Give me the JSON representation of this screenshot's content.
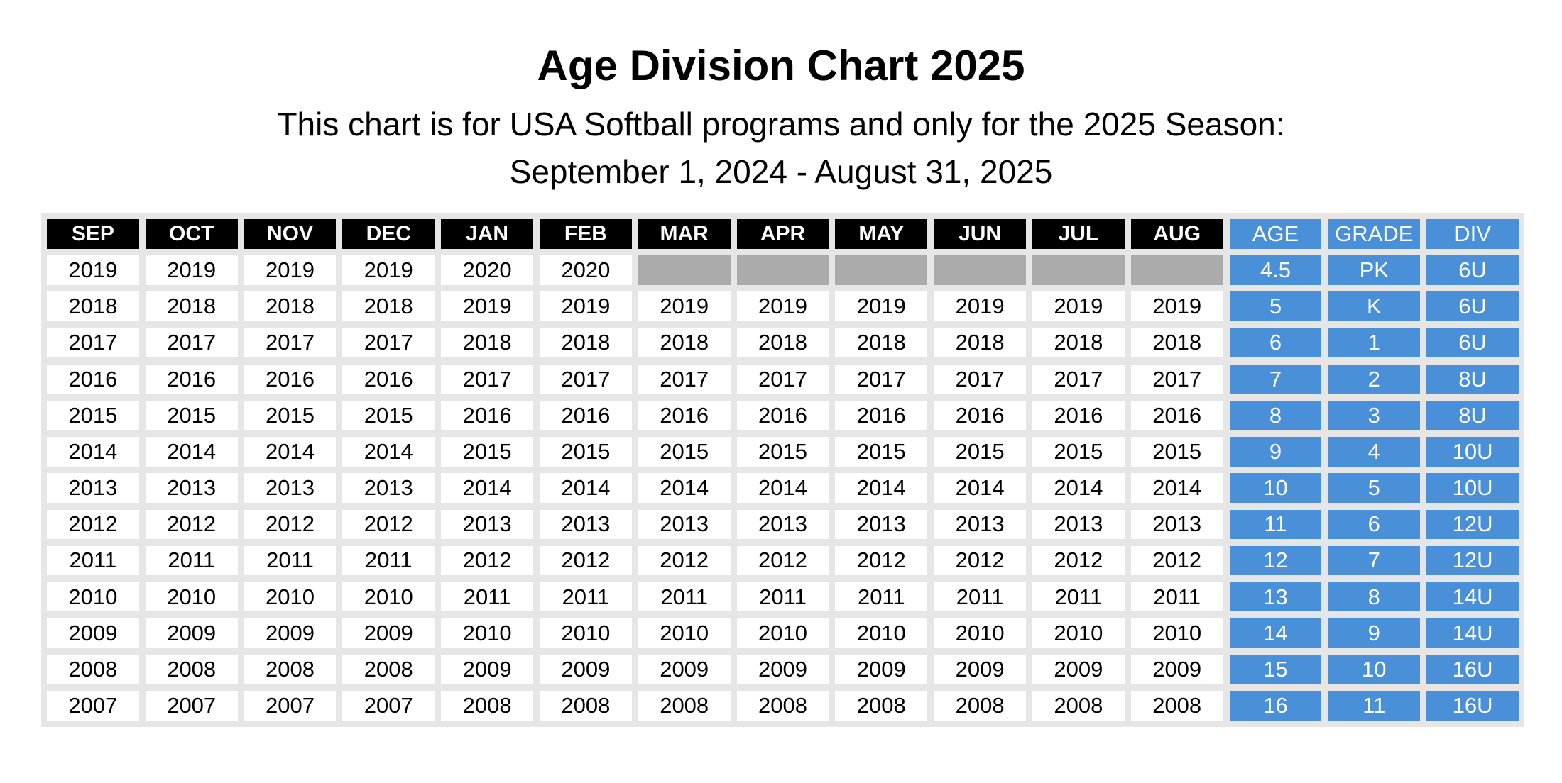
{
  "header": {
    "title": "Age Division Chart 2025",
    "subtitle": "This chart is for USA Softball programs and only for the 2025 Season:",
    "dates": "September 1, 2024 - August 31, 2025"
  },
  "table": {
    "columns": [
      "SEP",
      "OCT",
      "NOV",
      "DEC",
      "JAN",
      "FEB",
      "MAR",
      "APR",
      "MAY",
      "JUN",
      "JUL",
      "AUG",
      "AGE",
      "GRADE",
      "DIV"
    ],
    "rows": [
      [
        2019,
        2019,
        2019,
        2019,
        2020,
        2020,
        null,
        null,
        null,
        null,
        null,
        null,
        4.5,
        "PK",
        "6U"
      ],
      [
        2018,
        2018,
        2018,
        2018,
        2019,
        2019,
        2019,
        2019,
        2019,
        2019,
        2019,
        2019,
        5,
        "K",
        "6U"
      ],
      [
        2017,
        2017,
        2017,
        2017,
        2018,
        2018,
        2018,
        2018,
        2018,
        2018,
        2018,
        2018,
        6,
        1,
        "6U"
      ],
      [
        2016,
        2016,
        2016,
        2016,
        2017,
        2017,
        2017,
        2017,
        2017,
        2017,
        2017,
        2017,
        7,
        2,
        "8U"
      ],
      [
        2015,
        2015,
        2015,
        2015,
        2016,
        2016,
        2016,
        2016,
        2016,
        2016,
        2016,
        2016,
        8,
        3,
        "8U"
      ],
      [
        2014,
        2014,
        2014,
        2014,
        2015,
        2015,
        2015,
        2015,
        2015,
        2015,
        2015,
        2015,
        9,
        4,
        "10U"
      ],
      [
        2013,
        2013,
        2013,
        2013,
        2014,
        2014,
        2014,
        2014,
        2014,
        2014,
        2014,
        2014,
        10,
        5,
        "10U"
      ],
      [
        2012,
        2012,
        2012,
        2012,
        2013,
        2013,
        2013,
        2013,
        2013,
        2013,
        2013,
        2013,
        11,
        6,
        "12U"
      ],
      [
        2011,
        2011,
        2011,
        2011,
        2012,
        2012,
        2012,
        2012,
        2012,
        2012,
        2012,
        2012,
        12,
        7,
        "12U"
      ],
      [
        2010,
        2010,
        2010,
        2010,
        2011,
        2011,
        2011,
        2011,
        2011,
        2011,
        2011,
        2011,
        13,
        8,
        "14U"
      ],
      [
        2009,
        2009,
        2009,
        2009,
        2010,
        2010,
        2010,
        2010,
        2010,
        2010,
        2010,
        2010,
        14,
        9,
        "14U"
      ],
      [
        2008,
        2008,
        2008,
        2008,
        2009,
        2009,
        2009,
        2009,
        2009,
        2009,
        2009,
        2009,
        15,
        10,
        "16U"
      ],
      [
        2007,
        2007,
        2007,
        2007,
        2008,
        2008,
        2008,
        2008,
        2008,
        2008,
        2008,
        2008,
        16,
        11,
        "16U"
      ]
    ]
  }
}
